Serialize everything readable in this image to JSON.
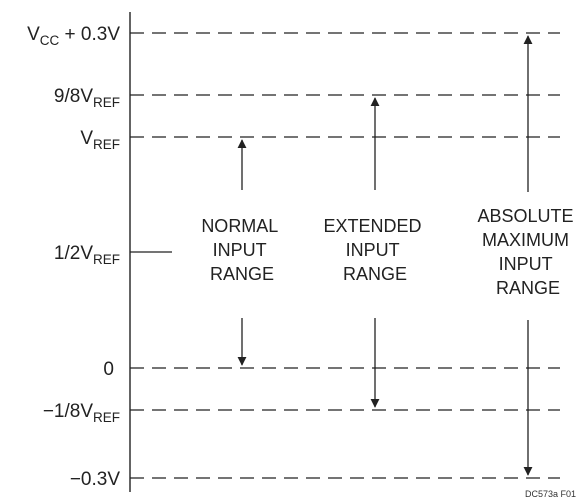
{
  "levels": [
    {
      "main": "V",
      "sub": "CC",
      "suffix": " + 0.3V"
    },
    {
      "main": "9/8V",
      "sub": "REF",
      "suffix": ""
    },
    {
      "main": "V",
      "sub": "REF",
      "suffix": ""
    },
    {
      "main": "1/2V",
      "sub": "REF",
      "suffix": ""
    },
    {
      "main": "0",
      "sub": "",
      "suffix": ""
    },
    {
      "main": "−1/8V",
      "sub": "REF",
      "suffix": ""
    },
    {
      "main": "−0.3V",
      "sub": "",
      "suffix": ""
    }
  ],
  "ranges": [
    {
      "lines": [
        "NORMAL",
        "INPUT",
        "RANGE"
      ]
    },
    {
      "lines": [
        "EXTENDED",
        "INPUT",
        "RANGE"
      ]
    },
    {
      "lines": [
        "ABSOLUTE",
        "MAXIMUM",
        "INPUT",
        "RANGE"
      ]
    }
  ],
  "figure_id": "DC573a F01"
}
